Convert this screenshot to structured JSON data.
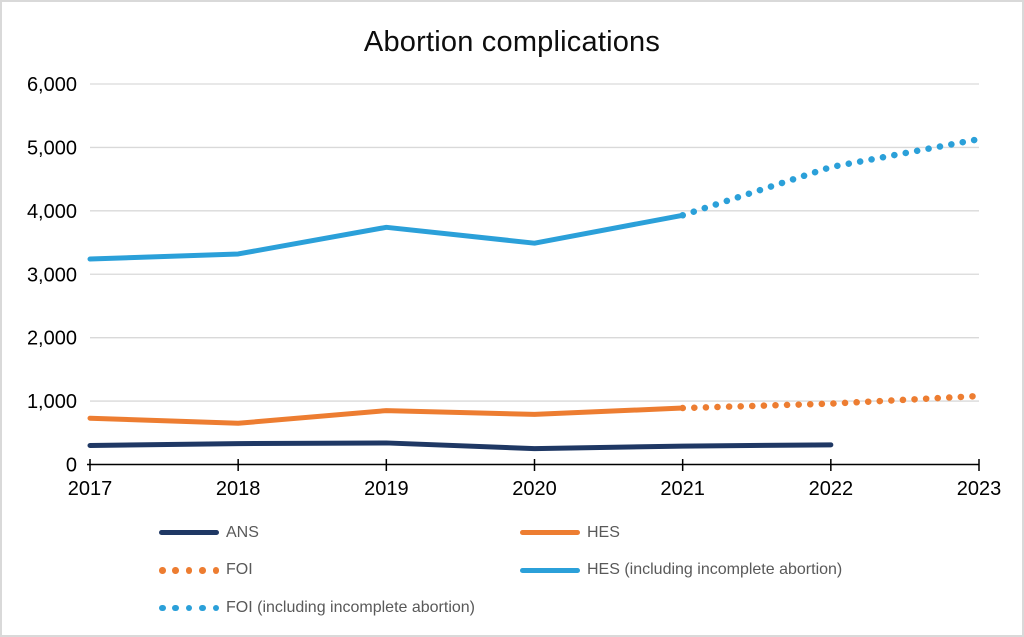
{
  "title": "Abortion complications",
  "colors": {
    "navy": "#1F3864",
    "orange": "#ED7D31",
    "blue": "#2BA0D9",
    "gridline": "#D9D9D9",
    "axis": "#000000",
    "axis_labels": "#000000",
    "legend_text": "#595959",
    "frame_border": "#D9D9D9",
    "background": "#FFFFFF"
  },
  "chart_data": {
    "type": "line",
    "title": "Abortion complications",
    "xlabel": "",
    "ylabel": "",
    "xlim": [
      2017,
      2023
    ],
    "ylim": [
      0,
      6000
    ],
    "x_tick_labels": [
      "2017",
      "2018",
      "2019",
      "2020",
      "2021",
      "2022",
      "2023"
    ],
    "x_ticks": [
      2017,
      2018,
      2019,
      2020,
      2021,
      2022,
      2023
    ],
    "y_ticks": [
      0,
      1000,
      2000,
      3000,
      4000,
      5000,
      6000
    ],
    "y_tick_labels": [
      "0",
      "1,000",
      "2,000",
      "3,000",
      "4,000",
      "5,000",
      "6,000"
    ],
    "grid": "horizontal",
    "legend_position": "bottom",
    "series": [
      {
        "name": "ANS",
        "style": "solid",
        "color": "#1F3864",
        "x": [
          2017,
          2018,
          2019,
          2020,
          2021,
          2022
        ],
        "values": [
          300,
          330,
          340,
          250,
          290,
          310
        ]
      },
      {
        "name": "HES",
        "style": "solid",
        "color": "#ED7D31",
        "x": [
          2017,
          2018,
          2019,
          2020,
          2021
        ],
        "values": [
          730,
          650,
          850,
          790,
          890
        ]
      },
      {
        "name": "FOI",
        "style": "dotted",
        "color": "#ED7D31",
        "x": [
          2021,
          2022,
          2023
        ],
        "values": [
          890,
          960,
          1080
        ]
      },
      {
        "name": "HES (including incomplete abortion)",
        "style": "solid",
        "color": "#2BA0D9",
        "x": [
          2017,
          2018,
          2019,
          2020,
          2021
        ],
        "values": [
          3240,
          3320,
          3740,
          3490,
          3930
        ]
      },
      {
        "name": "FOI (including incomplete abortion)",
        "style": "dotted",
        "color": "#2BA0D9",
        "x": [
          2021,
          2022,
          2023
        ],
        "values": [
          3930,
          4690,
          5130
        ]
      }
    ]
  },
  "legend": {
    "items": [
      {
        "label": "ANS",
        "color": "#1F3864",
        "style": "solid"
      },
      {
        "label": "HES",
        "color": "#ED7D31",
        "style": "solid"
      },
      {
        "label": "FOI",
        "color": "#ED7D31",
        "style": "dotted"
      },
      {
        "label": "HES (including incomplete abortion)",
        "color": "#2BA0D9",
        "style": "solid"
      },
      {
        "label": "FOI (including incomplete abortion)",
        "color": "#2BA0D9",
        "style": "dotted"
      }
    ]
  }
}
